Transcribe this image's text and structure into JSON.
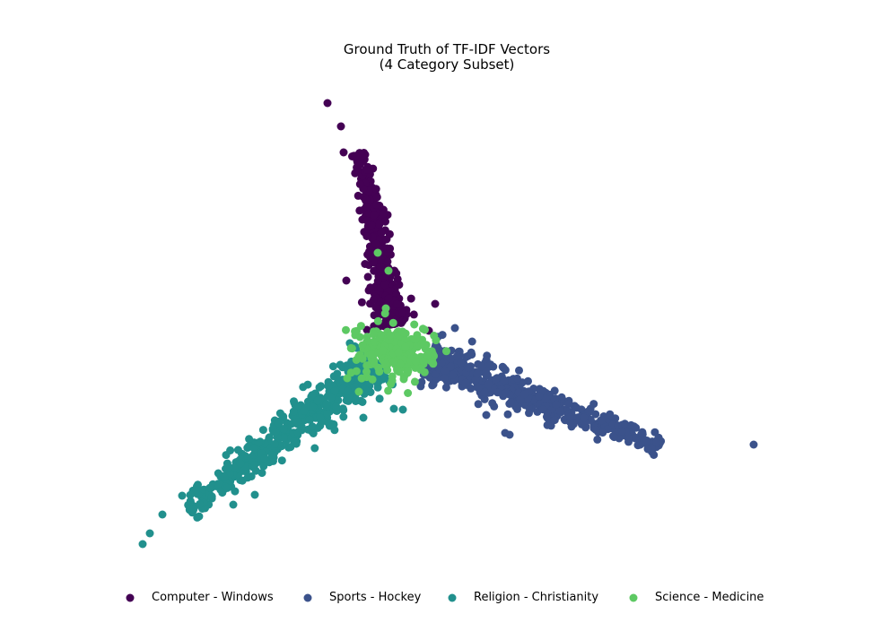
{
  "chart_data": {
    "type": "scatter",
    "title": "Ground Truth of TF-IDF Vectors",
    "subtitle": "(4 Category Subset)",
    "xlabel": "",
    "ylabel": "",
    "axes_visible": false,
    "grid": false,
    "legend_placement": "bottom",
    "series": [
      {
        "name": "Computer - Windows",
        "color": "#440154"
      },
      {
        "name": "Sports - Hockey",
        "color": "#3b528b"
      },
      {
        "name": "Religion - Christianity",
        "color": "#21908d"
      },
      {
        "name": "Science - Medicine",
        "color": "#5dc963"
      }
    ]
  }
}
